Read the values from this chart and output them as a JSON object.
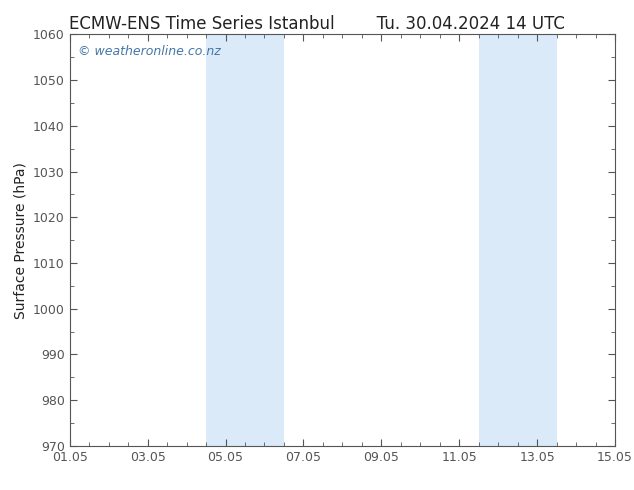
{
  "title_left": "ECMW-ENS Time Series Istanbul",
  "title_right": "Tu. 30.04.2024 14 UTC",
  "ylabel": "Surface Pressure (hPa)",
  "ylim": [
    970,
    1060
  ],
  "yticks": [
    970,
    980,
    990,
    1000,
    1010,
    1020,
    1030,
    1040,
    1050,
    1060
  ],
  "xlim_start": 0,
  "xlim_end": 14,
  "xtick_labels": [
    "01.05",
    "03.05",
    "05.05",
    "07.05",
    "09.05",
    "11.05",
    "13.05",
    "15.05"
  ],
  "xtick_positions": [
    0,
    2,
    4,
    6,
    8,
    10,
    12,
    14
  ],
  "shaded_bands": [
    {
      "x_start": 3.5,
      "x_end": 5.5
    },
    {
      "x_start": 10.5,
      "x_end": 12.5
    }
  ],
  "shaded_color": "#daeaf8",
  "background_color": "#ffffff",
  "plot_bg_color": "#ffffff",
  "watermark_text": "© weatheronline.co.nz",
  "watermark_color": "#4477aa",
  "title_color": "#222222",
  "axis_color": "#555555",
  "tick_color": "#555555",
  "title_fontsize": 12,
  "label_fontsize": 10,
  "tick_fontsize": 9,
  "watermark_fontsize": 9
}
